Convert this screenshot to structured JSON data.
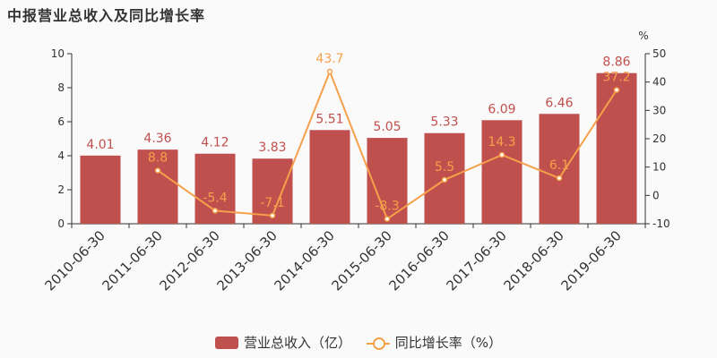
{
  "title": "中报营业总收入及同比增长率",
  "legend": {
    "bar_label": "营业总收入（亿）",
    "line_label": "同比增长率（%）"
  },
  "colors": {
    "bar": "#c0504d",
    "bar_label": "#c0504d",
    "line": "#f5a04a",
    "axis": "#333333"
  },
  "chart_data": {
    "type": "bar",
    "categories": [
      "2010-06-30",
      "2011-06-30",
      "2012-06-30",
      "2013-06-30",
      "2014-06-30",
      "2015-06-30",
      "2016-06-30",
      "2017-06-30",
      "2018-06-30",
      "2019-06-30"
    ],
    "series": [
      {
        "name": "营业总收入（亿）",
        "type": "bar",
        "axis": "left",
        "values": [
          4.01,
          4.36,
          4.12,
          3.83,
          5.51,
          5.05,
          5.33,
          6.09,
          6.46,
          8.86
        ],
        "labels": [
          "4.01",
          "4.36",
          "4.12",
          "3.83",
          "5.51",
          "5.05",
          "5.33",
          "6.09",
          "6.46",
          "8.86"
        ]
      },
      {
        "name": "同比增长率（%）",
        "type": "line",
        "axis": "right",
        "values": [
          null,
          8.8,
          -5.4,
          -7.1,
          43.7,
          -8.3,
          5.5,
          14.3,
          6.1,
          37.2
        ],
        "labels": [
          "",
          "8.8",
          "-5.4",
          "-7.1",
          "43.7",
          "-8.3",
          "5.5",
          "14.3",
          "6.1",
          "37.2"
        ]
      }
    ],
    "y_left": {
      "min": 0,
      "max": 10,
      "ticks": [
        0,
        2,
        4,
        6,
        8,
        10
      ]
    },
    "y_right": {
      "min": -10,
      "max": 50,
      "ticks": [
        -10,
        0,
        10,
        20,
        30,
        40,
        50
      ],
      "unit": "%"
    },
    "legend_position": "bottom",
    "grid": false
  }
}
